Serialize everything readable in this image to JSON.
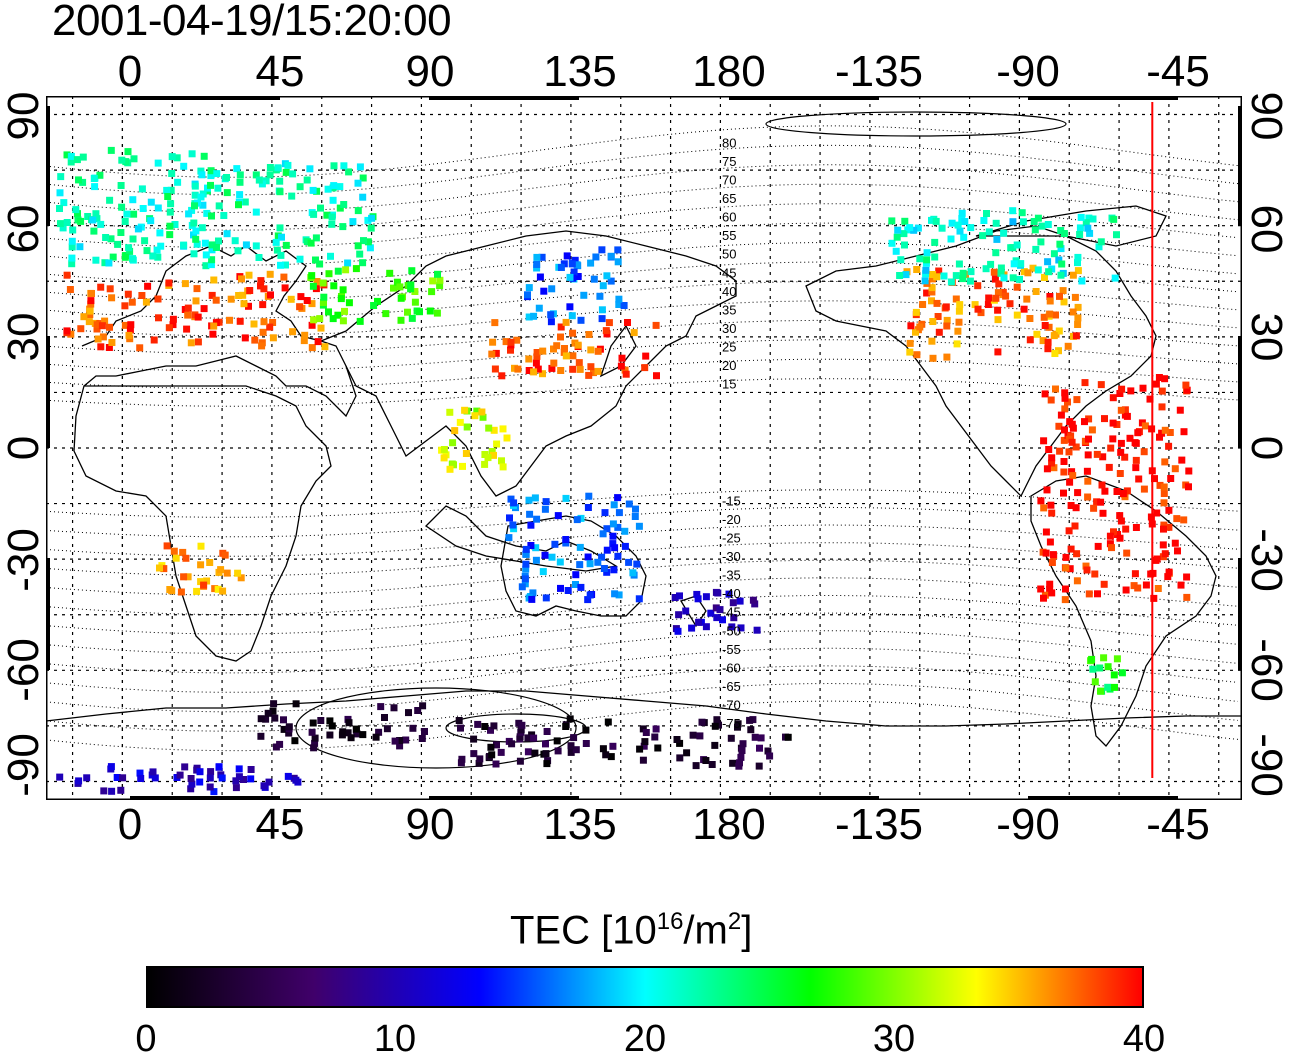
{
  "title": "2001-04-19/15:20:00",
  "map": {
    "top_lon_ticks": [
      "0",
      "45",
      "90",
      "135",
      "180",
      "-135",
      "-90",
      "-45"
    ],
    "bottom_lon_ticks": [
      "0",
      "45",
      "90",
      "135",
      "180",
      "-135",
      "-90",
      "-45"
    ],
    "left_lat_ticks": [
      "90",
      "60",
      "30",
      "0",
      "-30",
      "-60",
      "-90"
    ],
    "right_lat_ticks": [
      "90",
      "60",
      "30",
      "0",
      "-30",
      "-60",
      "-90"
    ],
    "contour_labels": [
      "80",
      "75",
      "70",
      "65",
      "60",
      "55",
      "50",
      "45",
      "40",
      "35",
      "30",
      "25",
      "20",
      "15",
      "-15",
      "-20",
      "-25",
      "-30",
      "-35",
      "-40",
      "-45",
      "-50",
      "-55",
      "-60",
      "-65",
      "-70",
      "-75"
    ],
    "terminator_longitude": -50,
    "terminator_color": "#ff0000",
    "lon_range": [
      -23,
      337
    ],
    "lat_range": [
      -95,
      95
    ]
  },
  "colorbar": {
    "title_prefix": "TEC  [10",
    "title_exp": "16",
    "title_mid": "/m",
    "title_sq": "2",
    "title_suffix": "]",
    "ticks": [
      "0",
      "10",
      "20",
      "30",
      "40"
    ],
    "range": [
      0,
      40
    ],
    "colors": [
      "#000000",
      "#40006a",
      "#0000ff",
      "#00ffff",
      "#00ff00",
      "#ffff00",
      "#ff0000"
    ]
  },
  "chart_data": {
    "type": "heatmap",
    "description_units": "TEC [10^16/m^2]",
    "regions": [
      {
        "lon": [
          -20,
          25
        ],
        "lat": [
          50,
          82
        ],
        "tec": 22
      },
      {
        "lon": [
          -18,
          60
        ],
        "lat": [
          28,
          48
        ],
        "tec": 38
      },
      {
        "lon": [
          20,
          75
        ],
        "lat": [
          50,
          78
        ],
        "tec": 22
      },
      {
        "lon": [
          55,
          95
        ],
        "lat": [
          35,
          50
        ],
        "tec": 28
      },
      {
        "lon": [
          110,
          160
        ],
        "lat": [
          20,
          35
        ],
        "tec": 38
      },
      {
        "lon": [
          120,
          150
        ],
        "lat": [
          35,
          55
        ],
        "tec": 16
      },
      {
        "lon": [
          95,
          115
        ],
        "lat": [
          -5,
          12
        ],
        "tec": 32
      },
      {
        "lon": [
          10,
          35
        ],
        "lat": [
          -38,
          -25
        ],
        "tec": 36
      },
      {
        "lon": [
          115,
          155
        ],
        "lat": [
          -40,
          -12
        ],
        "tec": 16
      },
      {
        "lon": [
          165,
          190
        ],
        "lat": [
          -50,
          -38
        ],
        "tec": 10
      },
      {
        "lon": [
          -125,
          -72
        ],
        "lat": [
          25,
          50
        ],
        "tec": 37
      },
      {
        "lon": [
          -130,
          -60
        ],
        "lat": [
          45,
          65
        ],
        "tec": 21
      },
      {
        "lon": [
          -85,
          -40
        ],
        "lat": [
          -40,
          20
        ],
        "tec": 40
      },
      {
        "lon": [
          -70,
          -60
        ],
        "lat": [
          -65,
          -55
        ],
        "tec": 26
      },
      {
        "lon": [
          40,
          90
        ],
        "lat": [
          -80,
          -68
        ],
        "tec": 2
      },
      {
        "lon": [
          100,
          200
        ],
        "lat": [
          -85,
          -72
        ],
        "tec": 3
      },
      {
        "lon": [
          -20,
          60
        ],
        "lat": [
          -92,
          -85
        ],
        "tec": 11
      }
    ]
  }
}
